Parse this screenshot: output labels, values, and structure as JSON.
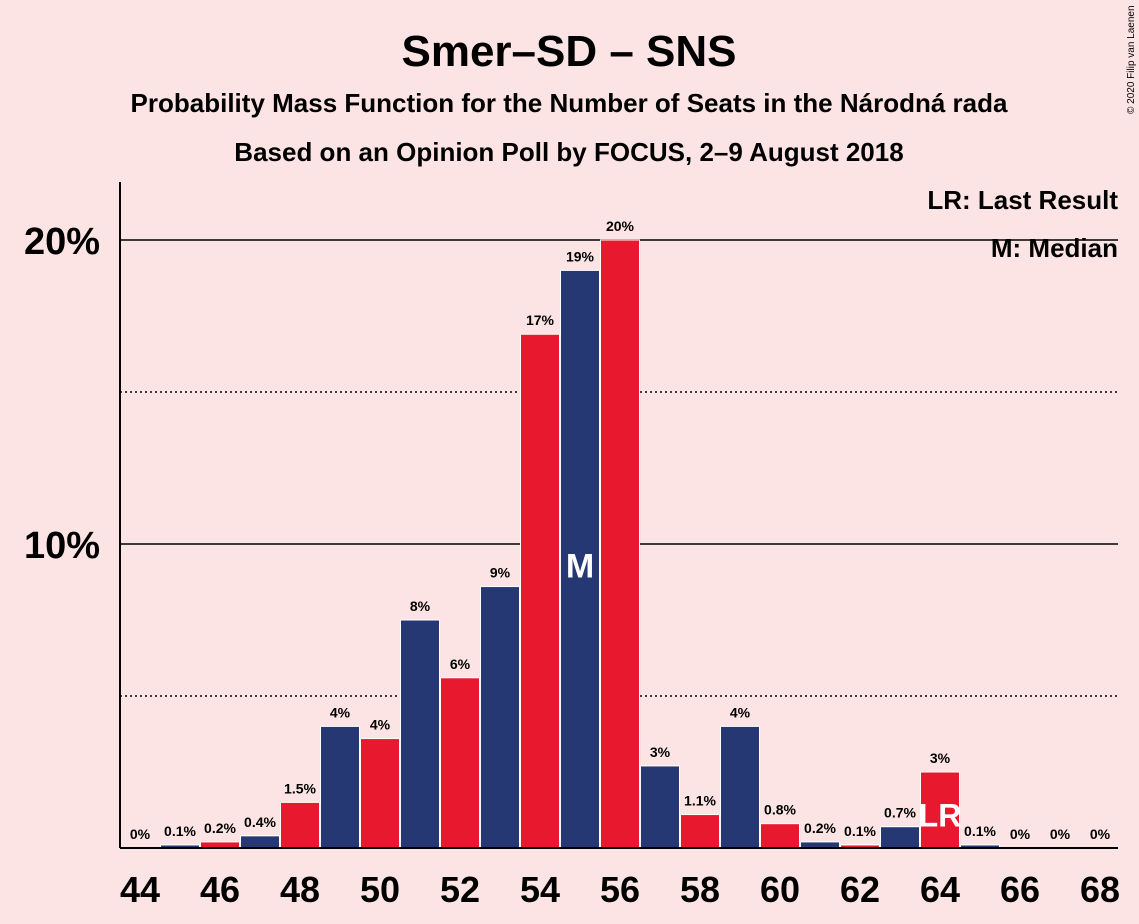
{
  "copyright": "© 2020 Filip van Laenen",
  "colors": {
    "background": "#fde4e4",
    "blue": "#253874",
    "red": "#e8192f",
    "text": "#000000",
    "white": "#ffffff"
  },
  "chart_data": {
    "type": "bar",
    "title": "Smer–SD – SNS",
    "subtitle": "Probability Mass Function for the Number of Seats in the Národná rada",
    "subtitle2": "Based on an Opinion Poll by FOCUS, 2–9 August 2018",
    "xlabel": "",
    "ylabel": "",
    "ylim": [
      0,
      22
    ],
    "y_ticks": [
      10,
      20
    ],
    "y_tick_labels": [
      "10%",
      "20%"
    ],
    "dotted_gridlines": [
      5,
      15
    ],
    "x_tick_labels": [
      "44",
      "46",
      "48",
      "50",
      "52",
      "54",
      "56",
      "58",
      "60",
      "62",
      "64",
      "66",
      "68"
    ],
    "categories": [
      44,
      45,
      46,
      47,
      48,
      49,
      50,
      51,
      52,
      53,
      54,
      55,
      56,
      57,
      58,
      59,
      60,
      61,
      62,
      63,
      64,
      65,
      66,
      67,
      68
    ],
    "values": [
      0,
      0.1,
      0.2,
      0.4,
      1.5,
      4,
      3.6,
      7.5,
      5.6,
      8.6,
      16.9,
      19,
      20,
      2.7,
      1.1,
      4,
      0.8,
      0.2,
      0.1,
      0.7,
      2.5,
      0.1,
      0,
      0,
      0
    ],
    "data_labels": [
      "0%",
      "0.1%",
      "0.2%",
      "0.4%",
      "1.5%",
      "4%",
      "4%",
      "8%",
      "6%",
      "9%",
      "17%",
      "19%",
      "20%",
      "3%",
      "1.1%",
      "4%",
      "0.8%",
      "0.2%",
      "0.1%",
      "0.7%",
      "3%",
      "0.1%",
      "0%",
      "0%",
      "0%"
    ],
    "bar_colors": [
      "blue",
      "blue",
      "red",
      "blue",
      "red",
      "blue",
      "red",
      "blue",
      "red",
      "blue",
      "red",
      "blue",
      "red",
      "blue",
      "red",
      "blue",
      "red",
      "blue",
      "red",
      "blue",
      "red",
      "blue",
      "red",
      "blue",
      "red"
    ],
    "median_seat": 55,
    "median_marker": "M",
    "last_result_seat": 64,
    "last_result_marker": "LR",
    "legend": {
      "placement": "top-right",
      "items": [
        "LR: Last Result",
        "M: Median"
      ]
    }
  }
}
